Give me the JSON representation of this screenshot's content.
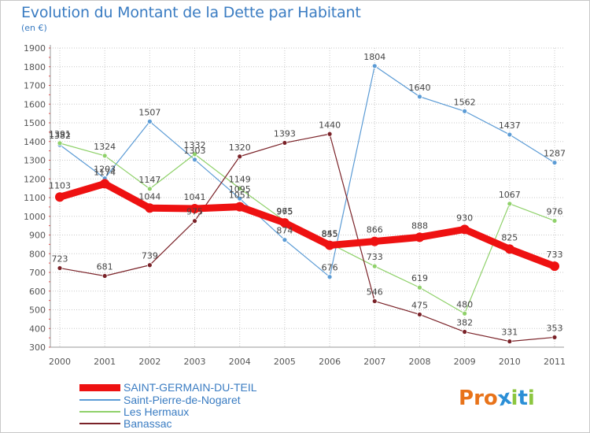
{
  "header": {
    "title": "Evolution du Montant de la Dette par Habitant",
    "unit": "(en €)"
  },
  "logo": {
    "text": "Proxiti",
    "colors": [
      "#e8731a",
      "#e8731a",
      "#e8731a",
      "#2b8fd6",
      "#8cc63f",
      "#2b8fd6",
      "#8cc63f"
    ]
  },
  "chart_data": {
    "type": "line",
    "title": "Evolution du Montant de la Dette par Habitant",
    "subtitle": "(en €)",
    "xlabel": "",
    "ylabel": "",
    "ylim": [
      300,
      1900
    ],
    "yticks": [
      300,
      400,
      500,
      600,
      700,
      800,
      900,
      1000,
      1100,
      1200,
      1300,
      1400,
      1500,
      1600,
      1700,
      1800,
      1900
    ],
    "categories": [
      "2000",
      "2001",
      "2002",
      "2003",
      "2004",
      "2005",
      "2006",
      "2007",
      "2008",
      "2009",
      "2010",
      "2011"
    ],
    "grid": true,
    "legend_position": "bottom-left",
    "series": [
      {
        "name": "SAINT-GERMAIN-DU-TEIL",
        "color": "#ee1111",
        "values": [
          1103,
          1174,
          1044,
          1041,
          1051,
          965,
          845,
          866,
          888,
          930,
          825,
          733
        ],
        "labels": [
          "1103",
          "1174",
          "1044",
          "1041",
          "1051",
          "965",
          "845",
          "866",
          "888",
          "930",
          "825",
          "733"
        ]
      },
      {
        "name": "Saint-Pierre-de-Nogaret",
        "color": "#5b9bd5",
        "values": [
          1382,
          1203,
          1507,
          1303,
          1095,
          874,
          676,
          1804,
          1640,
          1562,
          1437,
          1287
        ],
        "labels": [
          "1382",
          "1203",
          "1507",
          "1303",
          "1095",
          "874",
          "676",
          "1804",
          "1640",
          "1562",
          "1437",
          "1287"
        ]
      },
      {
        "name": "Les Hermaux",
        "color": "#8fd16a",
        "values": [
          1391,
          1324,
          1147,
          1332,
          1149,
          975,
          855,
          733,
          619,
          480,
          1067,
          976
        ],
        "labels": [
          "1391",
          "1324",
          "1147",
          "1332",
          "1149",
          "975",
          "855",
          "733",
          "619",
          "480",
          "1067",
          "976"
        ]
      },
      {
        "name": "Banassac",
        "color": "#7a2228",
        "values": [
          723,
          681,
          739,
          975,
          1320,
          1393,
          1440,
          546,
          475,
          382,
          331,
          353
        ],
        "labels": [
          "723",
          "681",
          "739",
          "975",
          "1320",
          "1393",
          "1440",
          "546",
          "475",
          "382",
          "331",
          "353"
        ]
      }
    ]
  }
}
